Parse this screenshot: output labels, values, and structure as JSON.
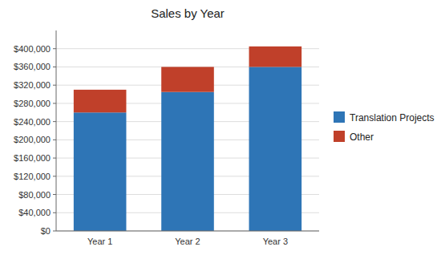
{
  "chart_data": {
    "type": "bar",
    "title": "Sales by Year",
    "categories": [
      "Year 1",
      "Year 2",
      "Year 3"
    ],
    "series": [
      {
        "name": "Translation Projects",
        "color": "#2E75B6",
        "values": [
          260000,
          305000,
          360000
        ]
      },
      {
        "name": "Other",
        "color": "#C0402A",
        "values": [
          50000,
          55000,
          45000
        ]
      }
    ],
    "stacked": true,
    "ylim": [
      0,
      440000
    ],
    "yticks": [
      {
        "value": 0,
        "label": "$0"
      },
      {
        "value": 40000,
        "label": "$40,000"
      },
      {
        "value": 80000,
        "label": "$80,000"
      },
      {
        "value": 120000,
        "label": "$120,000"
      },
      {
        "value": 160000,
        "label": "$160,000"
      },
      {
        "value": 200000,
        "label": "$200,000"
      },
      {
        "value": 240000,
        "label": "$240,000"
      },
      {
        "value": 280000,
        "label": "$280,000"
      },
      {
        "value": 320000,
        "label": "$320,000"
      },
      {
        "value": 360000,
        "label": "$360,000"
      },
      {
        "value": 400000,
        "label": "$400,000"
      }
    ],
    "grid": true,
    "legend": "right"
  }
}
